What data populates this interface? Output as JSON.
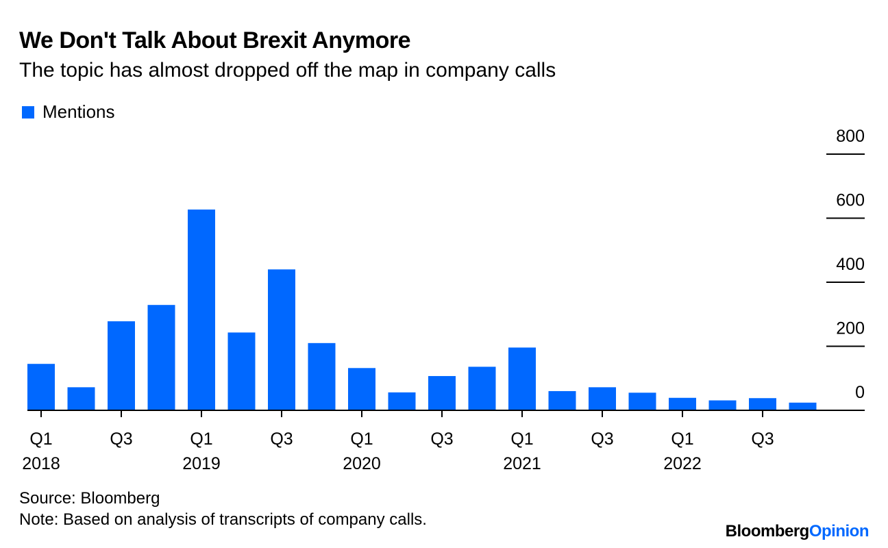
{
  "title": "We Don't Talk About Brexit Anymore",
  "subtitle": "The topic has almost dropped off the map in company calls",
  "legend": {
    "label": "Mentions"
  },
  "footer": {
    "source": "Source: Bloomberg",
    "note": "Note: Based on analysis of transcripts of company calls.",
    "brand_main": "Bloomberg",
    "brand_accent": "Opinion"
  },
  "colors": {
    "bar": "#0068ff",
    "text": "#000000",
    "axis": "#000000"
  },
  "chart_data": {
    "type": "bar",
    "categories": [
      "Q1 2018",
      "Q2 2018",
      "Q3 2018",
      "Q4 2018",
      "Q1 2019",
      "Q2 2019",
      "Q3 2019",
      "Q4 2019",
      "Q1 2020",
      "Q2 2020",
      "Q3 2020",
      "Q4 2020",
      "Q1 2021",
      "Q2 2021",
      "Q3 2021",
      "Q4 2021",
      "Q1 2022",
      "Q2 2022",
      "Q3 2022",
      "Q4 2022"
    ],
    "series": [
      {
        "name": "Mentions",
        "values": [
          145,
          72,
          278,
          329,
          627,
          243,
          440,
          210,
          132,
          56,
          107,
          136,
          196,
          60,
          72,
          55,
          39,
          31,
          38,
          24
        ]
      }
    ],
    "ylim": [
      0,
      800
    ],
    "yticks": [
      0,
      200,
      400,
      600,
      800
    ],
    "ytick_labels": [
      "0",
      "200",
      "400",
      "600",
      "800"
    ],
    "xticks": [
      {
        "index": 0,
        "quarter": "Q1",
        "year": "2018"
      },
      {
        "index": 2,
        "quarter": "Q3",
        "year": ""
      },
      {
        "index": 4,
        "quarter": "Q1",
        "year": "2019"
      },
      {
        "index": 6,
        "quarter": "Q3",
        "year": ""
      },
      {
        "index": 8,
        "quarter": "Q1",
        "year": "2020"
      },
      {
        "index": 10,
        "quarter": "Q3",
        "year": ""
      },
      {
        "index": 12,
        "quarter": "Q1",
        "year": "2021"
      },
      {
        "index": 14,
        "quarter": "Q3",
        "year": ""
      },
      {
        "index": 16,
        "quarter": "Q1",
        "year": "2022"
      },
      {
        "index": 18,
        "quarter": "Q3",
        "year": ""
      }
    ],
    "y_axis_position": "right",
    "grid": false,
    "legend_position": "top-left"
  }
}
